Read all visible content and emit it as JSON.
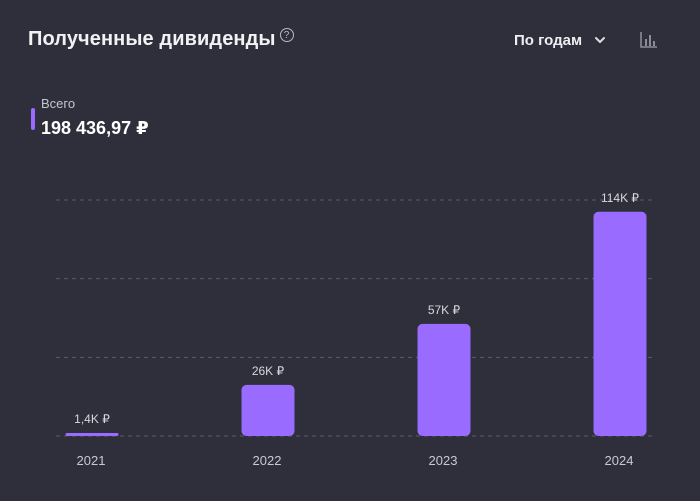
{
  "header": {
    "title": "Полученные дивиденды",
    "help_icon": "question-circle-icon",
    "period_select": {
      "selected": "По годам",
      "icon": "chevron-down-icon"
    },
    "chart_type_icon": "bar-chart-icon"
  },
  "summary": {
    "label": "Всего",
    "value": "198 436,97 ₽"
  },
  "colors": {
    "background": "#2f2f3b",
    "bar": "#9a6bff",
    "grid": "#5a5a68"
  },
  "chart_data": {
    "type": "bar",
    "categories": [
      "2021",
      "2022",
      "2023",
      "2024"
    ],
    "values": [
      1400,
      26000,
      57000,
      114000
    ],
    "data_labels": [
      "1,4K ₽",
      "26K ₽",
      "57K ₽",
      "114K ₽"
    ],
    "ylim": [
      0,
      120000
    ],
    "grid": true,
    "grid_lines": [
      0,
      40000,
      80000,
      120000
    ],
    "title": "",
    "xlabel": "",
    "ylabel": ""
  }
}
